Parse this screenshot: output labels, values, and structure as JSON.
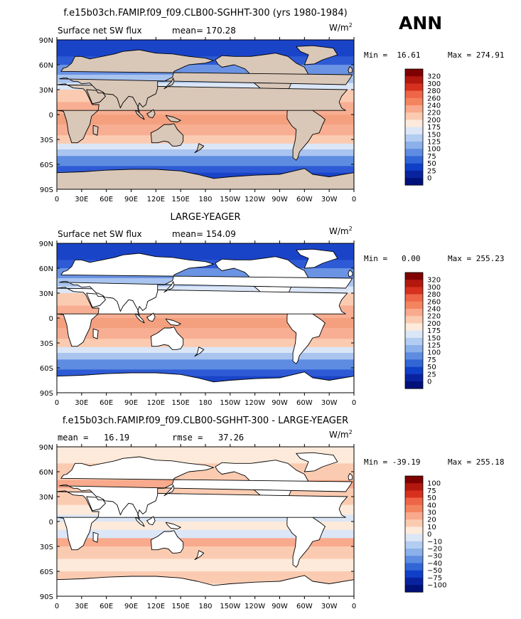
{
  "season": "ANN",
  "lat_ticks": [
    "90N",
    "60N",
    "30N",
    "0",
    "30S",
    "60S",
    "90S"
  ],
  "lon_ticks": [
    "0",
    "30E",
    "60E",
    "90E",
    "120E",
    "150E",
    "180",
    "150W",
    "120W",
    "90W",
    "60W",
    "30W",
    "0"
  ],
  "panels": [
    {
      "title": "f.e15b03ch.FAMIP.f09_f09.CLB00-SGHHT-300 (yrs 1980-1984)",
      "left_label": "Surface net SW flux",
      "center_label": "mean= 170.28",
      "units": "W/m",
      "units_sup": "2",
      "minmax_min": "Min =  16.61",
      "minmax_max": "Max = 274.91",
      "colorbar_labels": [
        "320",
        "300",
        "280",
        "260",
        "240",
        "220",
        "200",
        "175",
        "150",
        "125",
        "100",
        "75",
        "50",
        "25",
        "0"
      ],
      "colorbar_colors": [
        "#7f0000",
        "#b2180e",
        "#d7301f",
        "#ef6548",
        "#f4845f",
        "#f9a98c",
        "#fbcbb1",
        "#fdeadb",
        "#dbe6f7",
        "#b3ccf1",
        "#8bb0ea",
        "#5d8ce1",
        "#3266d6",
        "#0f3fc7",
        "#0923a0",
        "#00117a"
      ],
      "ocean_zones": [
        [
          90,
          "#1a44c8"
        ],
        [
          70,
          "#2e5bd5"
        ],
        [
          60,
          "#6b93e3"
        ],
        [
          48,
          "#a9c4ef"
        ],
        [
          38,
          "#dbe6f7"
        ],
        [
          30,
          "#fbcbb1"
        ],
        [
          15,
          "#f7ae92"
        ],
        [
          0,
          "#f4a07f"
        ],
        [
          -12,
          "#f7ae92"
        ],
        [
          -25,
          "#fbcbb1"
        ],
        [
          -35,
          "#dbe6f7"
        ],
        [
          -42,
          "#a9c4ef"
        ],
        [
          -50,
          "#5d8ce1"
        ],
        [
          -62,
          "#2e5bd5"
        ],
        [
          -70,
          "#1a44c8"
        ],
        [
          -90,
          "#1a44c8"
        ]
      ],
      "land_fill": "#d9c7b8",
      "chart_data": {
        "type": "heatmap",
        "variable": "Surface net SW flux",
        "units": "W/m2",
        "mean": 170.28,
        "min": 16.61,
        "max": 274.91,
        "levels": [
          0,
          25,
          50,
          75,
          100,
          125,
          150,
          175,
          200,
          220,
          240,
          260,
          280,
          300,
          320
        ]
      }
    },
    {
      "title": "LARGE-YEAGER",
      "left_label": "Surface net SW flux",
      "center_label": "mean= 154.09",
      "units": "W/m",
      "units_sup": "2",
      "minmax_min": "Min =   0.00",
      "minmax_max": "Max = 255.23",
      "colorbar_labels": [
        "320",
        "300",
        "280",
        "260",
        "240",
        "220",
        "200",
        "175",
        "150",
        "125",
        "100",
        "75",
        "50",
        "25",
        "0"
      ],
      "colorbar_colors": [
        "#7f0000",
        "#b2180e",
        "#d7301f",
        "#ef6548",
        "#f4845f",
        "#f9a98c",
        "#fbcbb1",
        "#fdeadb",
        "#dbe6f7",
        "#b3ccf1",
        "#8bb0ea",
        "#5d8ce1",
        "#3266d6",
        "#0f3fc7",
        "#0923a0",
        "#00117a"
      ],
      "ocean_zones": [
        [
          90,
          "#1a44c8"
        ],
        [
          70,
          "#2e5bd5"
        ],
        [
          60,
          "#6b93e3"
        ],
        [
          48,
          "#a9c4ef"
        ],
        [
          38,
          "#dbe6f7"
        ],
        [
          30,
          "#fbcbb1"
        ],
        [
          15,
          "#f7ae92"
        ],
        [
          0,
          "#f4a07f"
        ],
        [
          -12,
          "#f7ae92"
        ],
        [
          -25,
          "#fbcbb1"
        ],
        [
          -35,
          "#dbe6f7"
        ],
        [
          -42,
          "#a9c4ef"
        ],
        [
          -50,
          "#5d8ce1"
        ],
        [
          -62,
          "#2e5bd5"
        ],
        [
          -70,
          "#1a44c8"
        ],
        [
          -90,
          "#1a44c8"
        ]
      ],
      "land_fill": "#ffffff",
      "chart_data": {
        "type": "heatmap",
        "variable": "Surface net SW flux",
        "units": "W/m2",
        "mean": 154.09,
        "min": 0.0,
        "max": 255.23,
        "levels": [
          0,
          25,
          50,
          75,
          100,
          125,
          150,
          175,
          200,
          220,
          240,
          260,
          280,
          300,
          320
        ]
      }
    },
    {
      "title": "f.e15b03ch.FAMIP.f09_f09.CLB00-SGHHT-300 - LARGE-YEAGER",
      "left_label": "mean =   16.19",
      "center_label": "rmse =   37.26",
      "units": "W/m",
      "units_sup": "2",
      "minmax_min": "Min = -39.19",
      "minmax_max": "Max = 255.18",
      "colorbar_labels": [
        "100",
        "75",
        "50",
        "40",
        "30",
        "20",
        "10",
        "0",
        "−10",
        "−20",
        "−30",
        "−40",
        "−50",
        "−75",
        "−100"
      ],
      "colorbar_colors": [
        "#7f0000",
        "#b2180e",
        "#d7301f",
        "#ef6548",
        "#f4845f",
        "#f9a98c",
        "#fbcbb1",
        "#fdeadb",
        "#dbe6f7",
        "#b3ccf1",
        "#8bb0ea",
        "#5d8ce1",
        "#3266d6",
        "#0f3fc7",
        "#0923a0",
        "#00117a"
      ],
      "ocean_zones": [
        [
          90,
          "#fdeadb"
        ],
        [
          70,
          "#fbcbb1"
        ],
        [
          50,
          "#f9a98c"
        ],
        [
          40,
          "#fbcbb1"
        ],
        [
          20,
          "#fdeadb"
        ],
        [
          8,
          "#dbe6f7"
        ],
        [
          0,
          "#fdeadb"
        ],
        [
          -10,
          "#dbe6f7"
        ],
        [
          -20,
          "#f9a98c"
        ],
        [
          -30,
          "#fbcbb1"
        ],
        [
          -45,
          "#fdeadb"
        ],
        [
          -60,
          "#fbcbb1"
        ],
        [
          -75,
          "#fdeadb"
        ],
        [
          -90,
          "#fdeadb"
        ]
      ],
      "land_fill": "#ffffff",
      "chart_data": {
        "type": "heatmap",
        "variable": "Surface net SW flux difference",
        "units": "W/m2",
        "mean": 16.19,
        "rmse": 37.26,
        "min": -39.19,
        "max": 255.18,
        "levels": [
          -100,
          -75,
          -50,
          -40,
          -30,
          -20,
          -10,
          0,
          10,
          20,
          30,
          40,
          50,
          75,
          100
        ]
      }
    }
  ]
}
